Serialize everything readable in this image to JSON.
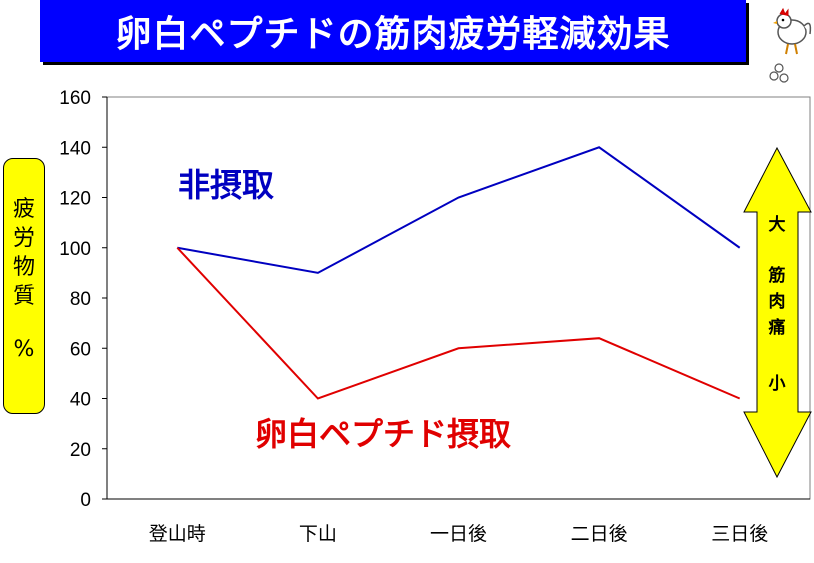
{
  "title": "卵白ペプチドの筋肉疲労軽減効果",
  "y_axis_label": {
    "chars": [
      "疲",
      "労",
      "物",
      "質"
    ],
    "unit": "%"
  },
  "arrow": {
    "top": "大",
    "middle": [
      "筋",
      "肉",
      "痛"
    ],
    "bottom": "小",
    "color": "#ffff00"
  },
  "colors": {
    "title_bg": "#0000ff",
    "label_bg": "#ffff00"
  },
  "icons": {
    "mascot": "chicken-mascot-icon"
  },
  "chart_data": {
    "type": "line",
    "categories": [
      "登山時",
      "下山",
      "一日後",
      "二日後",
      "三日後"
    ],
    "ylim": [
      0,
      160
    ],
    "yticks": [
      0,
      20,
      40,
      60,
      80,
      100,
      120,
      140,
      160
    ],
    "grid": false,
    "series": [
      {
        "name": "非摂取",
        "values": [
          100,
          90,
          120,
          140,
          100
        ],
        "color": "#0000c0"
      },
      {
        "name": "卵白ペプチド摂取",
        "values": [
          100,
          40,
          60,
          64,
          40
        ],
        "color": "#e00000"
      }
    ]
  }
}
